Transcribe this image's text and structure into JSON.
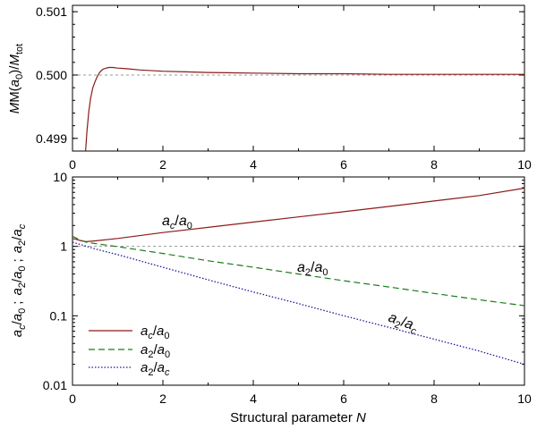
{
  "chart_data": [
    {
      "type": "line",
      "panel": "top",
      "xlabel": "",
      "ylabel": "M(a_0)/M_tot",
      "xlim": [
        0,
        10
      ],
      "ylim": [
        0.4988,
        0.5011
      ],
      "x_ticks": [
        "0",
        "2",
        "4",
        "6",
        "8",
        "10"
      ],
      "y_ticks": [
        "0.499",
        "0.500",
        "0.501"
      ],
      "y_tick_values": [
        0.499,
        0.5,
        0.501
      ],
      "reference_line": {
        "y": 0.5,
        "style": "dashed",
        "color": "#999999"
      },
      "series": [
        {
          "name": "M(a_0)/M_tot",
          "color": "#8b1a1a",
          "x": [
            0.29,
            0.32,
            0.36,
            0.4,
            0.45,
            0.5,
            0.55,
            0.6,
            0.65,
            0.7,
            0.75,
            0.8,
            0.9,
            1.0,
            1.2,
            1.5,
            2.0,
            2.5,
            3.0,
            4.0,
            5.0,
            6.0,
            7.0,
            8.0,
            9.0,
            10.0
          ],
          "y": [
            0.49877,
            0.49912,
            0.49942,
            0.49963,
            0.4998,
            0.4999,
            0.49998,
            0.50004,
            0.50008,
            0.5001,
            0.50011,
            0.50012,
            0.50012,
            0.50011,
            0.5001,
            0.50008,
            0.50006,
            0.50005,
            0.50004,
            0.50003,
            0.50002,
            0.50002,
            0.50001,
            0.50001,
            0.50001,
            0.50001
          ]
        }
      ]
    },
    {
      "type": "line",
      "panel": "bottom",
      "xlabel": "Structural parameter N",
      "ylabel": "a_c/a_0 ; a_2/a_0 ; a_2/a_c",
      "xlim": [
        0,
        10
      ],
      "ylim": [
        0.01,
        10
      ],
      "yscale": "log",
      "x_ticks": [
        "0",
        "2",
        "4",
        "6",
        "8",
        "10"
      ],
      "y_ticks": [
        "0.01",
        "0.1",
        "1",
        "10"
      ],
      "y_tick_values": [
        0.01,
        0.1,
        1,
        10
      ],
      "reference_line": {
        "y": 1,
        "style": "dashed",
        "color": "#999999"
      },
      "legend_position": "bottom-left",
      "series": [
        {
          "name": "a_c/a_0",
          "style": "solid",
          "color": "#8b1a1a",
          "x": [
            0,
            0.1,
            0.2,
            0.3,
            0.5,
            1,
            2,
            3,
            4,
            5,
            6,
            7,
            8,
            9,
            10
          ],
          "y": [
            1.3,
            1.25,
            1.2,
            1.17,
            1.2,
            1.3,
            1.58,
            1.88,
            2.24,
            2.66,
            3.16,
            3.76,
            4.5,
            5.4,
            6.9
          ]
        },
        {
          "name": "a_2/a_0",
          "style": "dashed",
          "color": "#1a7a1a",
          "x": [
            0,
            0.1,
            0.2,
            0.3,
            0.5,
            1,
            2,
            3,
            4,
            5,
            6,
            7,
            8,
            9,
            10
          ],
          "y": [
            1.4,
            1.3,
            1.22,
            1.15,
            1.1,
            0.99,
            0.79,
            0.62,
            0.5,
            0.4,
            0.32,
            0.26,
            0.21,
            0.17,
            0.14
          ]
        },
        {
          "name": "a_2/a_c",
          "style": "dotted",
          "color": "#1a1a9a",
          "x": [
            0,
            0.1,
            0.2,
            0.5,
            1,
            2,
            3,
            4,
            5,
            6,
            7,
            8,
            9,
            10
          ],
          "y": [
            1.15,
            1.1,
            1.05,
            0.92,
            0.76,
            0.5,
            0.33,
            0.22,
            0.15,
            0.1,
            0.068,
            0.046,
            0.031,
            0.02
          ]
        }
      ],
      "annotations": [
        {
          "label": "a_c/a_0",
          "at_x": 2.0,
          "at_y": 2.1
        },
        {
          "label": "a_2/a_0",
          "at_x": 5.7,
          "at_y": 0.52
        },
        {
          "label": "a_2/a_c",
          "at_x": 7.5,
          "at_y": 0.085
        }
      ]
    }
  ],
  "labels": {
    "top_ylabel": {
      "a": "M(",
      "b": "a",
      "c": "0",
      "d": ")/",
      "e": "M",
      "f": "tot"
    },
    "bottom_xlabel": {
      "main": "Structural parameter ",
      "var": "N"
    },
    "semicolon": ";",
    "tex": {
      "a": "a",
      "c": "c",
      "zero": "0",
      "two": "2",
      "slash": "/"
    }
  }
}
